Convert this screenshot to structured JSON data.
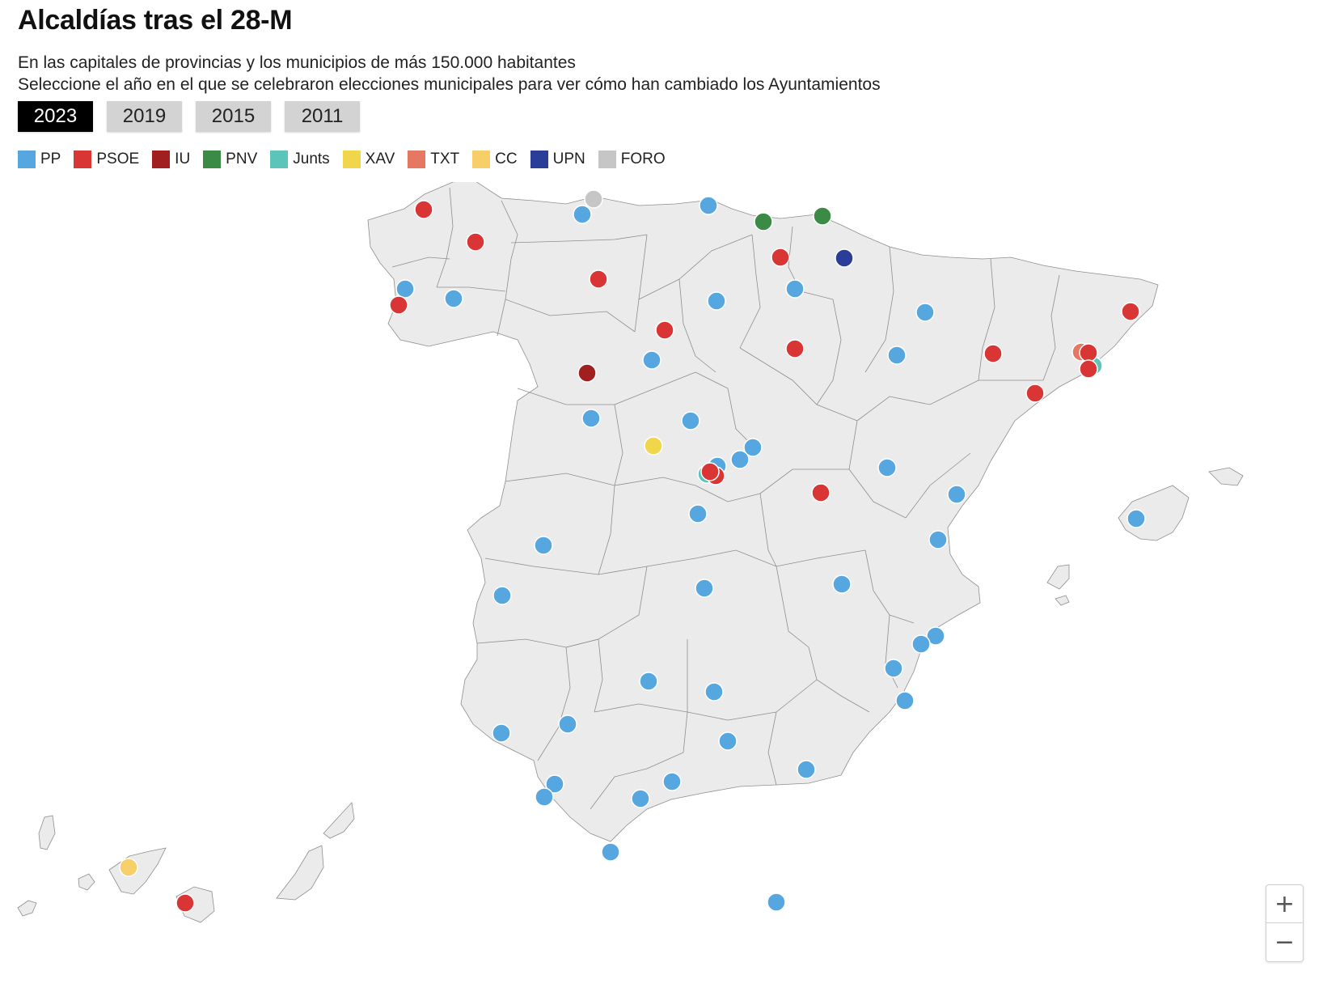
{
  "header": {
    "title": "Alcaldías tras el 28-M",
    "subtitle1": "En las capitales de provincias y los municipios de más 150.000 habitantes",
    "subtitle2": "Seleccione el año en el que se celebraron elecciones municipales para ver cómo han cambiado los Ayuntamientos"
  },
  "years": [
    {
      "label": "2023",
      "active": true
    },
    {
      "label": "2019",
      "active": false
    },
    {
      "label": "2015",
      "active": false
    },
    {
      "label": "2011",
      "active": false
    }
  ],
  "legend": [
    {
      "party": "PP",
      "color": "#56a6e0"
    },
    {
      "party": "PSOE",
      "color": "#d93535"
    },
    {
      "party": "IU",
      "color": "#a21f1f"
    },
    {
      "party": "PNV",
      "color": "#3b8a45"
    },
    {
      "party": "Junts",
      "color": "#5cc4b8"
    },
    {
      "party": "XAV",
      "color": "#f1d54b"
    },
    {
      "party": "TXT",
      "color": "#e67763"
    },
    {
      "party": "CC",
      "color": "#f6cf68"
    },
    {
      "party": "UPN",
      "color": "#2a3e99"
    },
    {
      "party": "FORO",
      "color": "#c6c6c6"
    }
  ],
  "zoom": {
    "in": "+",
    "out": "−"
  },
  "styles": {
    "land": "#ebebeb",
    "border": "#8e8e8e",
    "marker_stroke": "#ffffff"
  }
}
